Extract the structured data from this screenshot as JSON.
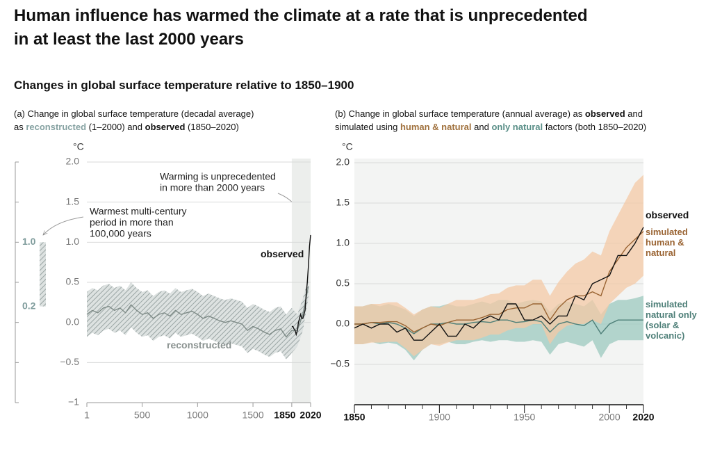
{
  "title": [
    "Human influence has warmed the climate at a rate that is unprecedented",
    "in at least the last 2000 years"
  ],
  "subtitle": "Changes in global surface temperature relative to 1850–1900",
  "chart_data": [
    {
      "type": "line",
      "caption": [
        "(a) Change in global surface temperature (decadal average)",
        "as ",
        "reconstructed",
        " (1–2000) and ",
        "observed",
        " (1850–2020)"
      ],
      "y_label": "°C",
      "xlim": [
        1,
        2020
      ],
      "xticks": [
        1,
        500,
        1000,
        1500,
        1850,
        2020
      ],
      "ylim": [
        -1,
        2
      ],
      "yticks": [
        {
          "value": -1,
          "label": "−1"
        },
        {
          "value": -0.5,
          "label": "−0.5"
        },
        {
          "value": 0,
          "label": "0.0"
        },
        {
          "value": 0.5,
          "label": "0.5"
        },
        {
          "value": 1,
          "label": "1.0"
        },
        {
          "value": 1.5,
          "label": "1.5"
        },
        {
          "value": 2,
          "label": "2.0"
        }
      ],
      "grid": true,
      "warmest_period_range": [
        0.2,
        {
          "value": 1,
          "label": "1.0"
        }
      ],
      "annotations": [
        [
          "Warming is unprecedented",
          "in more than 2000 years"
        ],
        [
          "Warmest multi-century",
          "period in more than",
          "100,000 years"
        ]
      ],
      "series": [
        {
          "name": "reconstructed",
          "color": "#7d8a86",
          "band_color": "#aab4b3",
          "hatched": true,
          "x": [
            1,
            50,
            100,
            150,
            200,
            250,
            300,
            350,
            400,
            450,
            500,
            550,
            600,
            650,
            700,
            750,
            800,
            850,
            900,
            950,
            1000,
            1050,
            1100,
            1150,
            1200,
            1250,
            1300,
            1350,
            1400,
            1450,
            1500,
            1550,
            1600,
            1650,
            1700,
            1750,
            1800,
            1850,
            1900,
            1950,
            2000
          ],
          "values": [
            0.1,
            0.15,
            0.12,
            0.18,
            0.2,
            0.15,
            0.18,
            0.12,
            0.22,
            0.15,
            0.1,
            0.12,
            0.05,
            0.1,
            0.12,
            0.08,
            0.15,
            0.1,
            0.12,
            0.14,
            0.1,
            0.05,
            0.08,
            0.05,
            0.02,
            0.0,
            0.02,
            0.0,
            -0.02,
            -0.1,
            -0.05,
            -0.08,
            -0.12,
            -0.15,
            -0.1,
            -0.08,
            -0.18,
            -0.1,
            -0.1,
            0.1,
            0.45
          ],
          "lower": [
            -0.18,
            -0.13,
            -0.16,
            -0.1,
            -0.08,
            -0.13,
            -0.1,
            -0.16,
            -0.06,
            -0.13,
            -0.18,
            -0.16,
            -0.23,
            -0.18,
            -0.16,
            -0.2,
            -0.13,
            -0.18,
            -0.16,
            -0.14,
            -0.18,
            -0.23,
            -0.2,
            -0.23,
            -0.26,
            -0.28,
            -0.26,
            -0.28,
            -0.3,
            -0.38,
            -0.33,
            -0.36,
            -0.4,
            -0.43,
            -0.38,
            -0.36,
            -0.46,
            -0.38,
            -0.3,
            -0.1,
            0.3
          ],
          "upper": [
            0.38,
            0.43,
            0.4,
            0.46,
            0.48,
            0.43,
            0.46,
            0.4,
            0.5,
            0.43,
            0.38,
            0.4,
            0.33,
            0.38,
            0.4,
            0.36,
            0.43,
            0.38,
            0.4,
            0.42,
            0.38,
            0.33,
            0.36,
            0.33,
            0.3,
            0.28,
            0.3,
            0.28,
            0.26,
            0.18,
            0.23,
            0.2,
            0.16,
            0.13,
            0.18,
            0.2,
            0.1,
            0.18,
            0.1,
            0.3,
            0.55
          ]
        },
        {
          "name": "observed",
          "color": "#111111",
          "x": [
            1850,
            1860,
            1870,
            1880,
            1890,
            1900,
            1910,
            1920,
            1930,
            1940,
            1950,
            1960,
            1970,
            1980,
            1990,
            2000,
            2010,
            2020
          ],
          "values": [
            -0.05,
            -0.05,
            -0.08,
            -0.1,
            -0.15,
            -0.1,
            0.0,
            0.05,
            0.1,
            0.05,
            0.05,
            0.1,
            0.15,
            0.35,
            0.5,
            0.7,
            0.95,
            1.09
          ]
        }
      ]
    },
    {
      "type": "line",
      "caption": [
        "(b) Change in global surface temperature (annual average) as ",
        "observed",
        " and",
        "simulated using ",
        "human & natural",
        " and ",
        "only natural",
        " factors (both 1850–2020)"
      ],
      "y_label": "°C",
      "xlim": [
        1850,
        2020
      ],
      "xticks": [
        1850,
        1900,
        1950,
        2000,
        2020
      ],
      "minor_xticks": [
        1860,
        1870,
        1880,
        1890,
        1910,
        1920,
        1930,
        1940,
        1960,
        1970,
        1980,
        1990,
        2010
      ],
      "ylim": [
        -1,
        2
      ],
      "yticks": [
        {
          "value": -0.5,
          "label": "−0.5"
        },
        {
          "value": 0,
          "label": "0.0"
        },
        {
          "value": 0.5,
          "label": "0.5"
        },
        {
          "value": 1,
          "label": "1.0"
        },
        {
          "value": 1.5,
          "label": "1.5"
        },
        {
          "value": 2,
          "label": "2.0"
        }
      ],
      "grid": true,
      "series": [
        {
          "name": "simulated natural only (solar & volcanic)",
          "color": "#4e7f78",
          "band_color": "#9ccabf",
          "x": [
            1850,
            1855,
            1860,
            1865,
            1870,
            1875,
            1880,
            1885,
            1890,
            1895,
            1900,
            1905,
            1910,
            1915,
            1920,
            1925,
            1930,
            1935,
            1940,
            1945,
            1950,
            1955,
            1960,
            1965,
            1970,
            1975,
            1980,
            1985,
            1990,
            1995,
            2000,
            2005,
            2010,
            2015,
            2020
          ],
          "values": [
            0.0,
            0.0,
            0.02,
            0.0,
            0.02,
            0.0,
            -0.05,
            -0.12,
            -0.05,
            0.0,
            0.0,
            0.02,
            0.0,
            0.0,
            0.02,
            0.03,
            0.02,
            0.05,
            0.05,
            0.02,
            0.03,
            0.05,
            0.03,
            -0.1,
            0.0,
            0.03,
            0.0,
            -0.02,
            0.05,
            -0.12,
            0.0,
            0.05,
            0.05,
            0.05,
            0.05
          ],
          "lower": [
            -0.25,
            -0.25,
            -0.22,
            -0.25,
            -0.23,
            -0.25,
            -0.32,
            -0.45,
            -0.32,
            -0.25,
            -0.25,
            -0.22,
            -0.25,
            -0.25,
            -0.22,
            -0.2,
            -0.22,
            -0.2,
            -0.2,
            -0.22,
            -0.22,
            -0.2,
            -0.22,
            -0.38,
            -0.25,
            -0.22,
            -0.25,
            -0.28,
            -0.2,
            -0.42,
            -0.25,
            -0.2,
            -0.2,
            -0.2,
            -0.2
          ],
          "upper": [
            0.22,
            0.22,
            0.25,
            0.22,
            0.25,
            0.22,
            0.18,
            0.1,
            0.18,
            0.22,
            0.22,
            0.25,
            0.22,
            0.22,
            0.25,
            0.28,
            0.25,
            0.3,
            0.3,
            0.25,
            0.28,
            0.3,
            0.28,
            0.15,
            0.25,
            0.28,
            0.25,
            0.22,
            0.3,
            0.12,
            0.25,
            0.3,
            0.3,
            0.32,
            0.35
          ]
        },
        {
          "name": "simulated human & natural",
          "color": "#9a6433",
          "band_color": "#f4c9a5",
          "x": [
            1850,
            1855,
            1860,
            1865,
            1870,
            1875,
            1880,
            1885,
            1890,
            1895,
            1900,
            1905,
            1910,
            1915,
            1920,
            1925,
            1930,
            1935,
            1940,
            1945,
            1950,
            1955,
            1960,
            1965,
            1970,
            1975,
            1980,
            1985,
            1990,
            1995,
            2000,
            2005,
            2010,
            2015,
            2020
          ],
          "values": [
            0.0,
            0.0,
            0.02,
            0.02,
            0.03,
            0.03,
            -0.02,
            -0.1,
            -0.05,
            0.0,
            -0.02,
            0.02,
            0.05,
            0.05,
            0.05,
            0.08,
            0.12,
            0.12,
            0.18,
            0.2,
            0.2,
            0.25,
            0.25,
            0.05,
            0.2,
            0.3,
            0.35,
            0.35,
            0.4,
            0.35,
            0.65,
            0.8,
            0.95,
            1.05,
            1.15
          ],
          "lower": [
            -0.25,
            -0.25,
            -0.23,
            -0.23,
            -0.22,
            -0.22,
            -0.3,
            -0.4,
            -0.32,
            -0.25,
            -0.27,
            -0.23,
            -0.2,
            -0.2,
            -0.2,
            -0.17,
            -0.13,
            -0.13,
            -0.08,
            -0.05,
            -0.05,
            0.0,
            0.0,
            -0.25,
            -0.1,
            -0.02,
            0.0,
            0.0,
            0.05,
            0.0,
            0.25,
            0.35,
            0.45,
            0.5,
            0.6
          ],
          "upper": [
            0.22,
            0.22,
            0.25,
            0.25,
            0.27,
            0.27,
            0.2,
            0.12,
            0.18,
            0.22,
            0.2,
            0.25,
            0.3,
            0.3,
            0.3,
            0.33,
            0.37,
            0.38,
            0.45,
            0.48,
            0.48,
            0.55,
            0.55,
            0.35,
            0.52,
            0.65,
            0.75,
            0.8,
            0.9,
            0.85,
            1.15,
            1.35,
            1.55,
            1.75,
            1.85
          ]
        },
        {
          "name": "observed",
          "color": "#111111",
          "x": [
            1850,
            1855,
            1860,
            1865,
            1870,
            1875,
            1880,
            1885,
            1890,
            1895,
            1900,
            1905,
            1910,
            1915,
            1920,
            1925,
            1930,
            1935,
            1940,
            1945,
            1950,
            1955,
            1960,
            1965,
            1970,
            1975,
            1980,
            1985,
            1990,
            1995,
            2000,
            2005,
            2010,
            2015,
            2020
          ],
          "values": [
            -0.05,
            0.0,
            -0.05,
            0.0,
            0.0,
            -0.1,
            -0.05,
            -0.2,
            -0.2,
            -0.1,
            0.0,
            -0.15,
            -0.15,
            0.0,
            -0.05,
            0.05,
            0.1,
            0.05,
            0.25,
            0.25,
            0.05,
            0.05,
            0.1,
            0.0,
            0.1,
            0.1,
            0.35,
            0.3,
            0.5,
            0.55,
            0.6,
            0.85,
            0.85,
            1.0,
            1.2
          ]
        }
      ]
    }
  ]
}
